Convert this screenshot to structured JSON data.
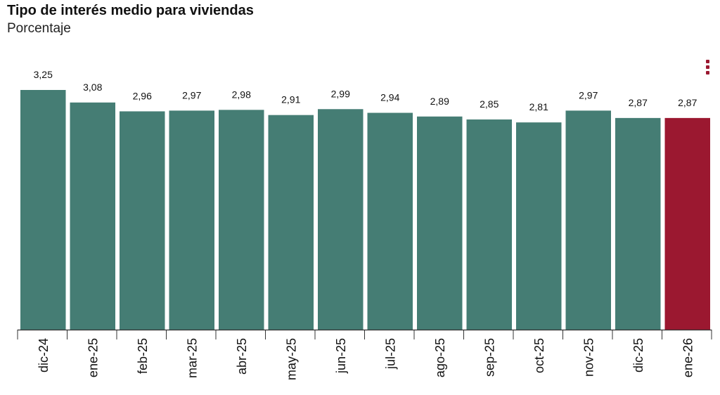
{
  "title": "Tipo de interés medio para viviendas",
  "subtitle": "Porcentaje",
  "colors": {
    "bar": "#457d74",
    "highlight": "#9b1830",
    "menu": "#9b1830"
  },
  "menu_icon": "kebab-menu-icon",
  "chart_data": {
    "type": "bar",
    "title": "Tipo de interés medio para viviendas",
    "subtitle": "Porcentaje",
    "categories": [
      "dic-24",
      "ene-25",
      "feb-25",
      "mar-25",
      "abr-25",
      "may-25",
      "jun-25",
      "jul-25",
      "ago-25",
      "sep-25",
      "oct-25",
      "nov-25",
      "dic-25",
      "ene-26"
    ],
    "values": [
      3.25,
      3.08,
      2.96,
      2.97,
      2.98,
      2.91,
      2.99,
      2.94,
      2.89,
      2.85,
      2.81,
      2.97,
      2.87,
      2.87
    ],
    "labels": [
      "3,25",
      "3,08",
      "2,96",
      "2,97",
      "2,98",
      "2,91",
      "2,99",
      "2,94",
      "2,89",
      "2,85",
      "2,81",
      "2,97",
      "2,87",
      "2,87"
    ],
    "highlight_index": 13,
    "ylim": [
      0,
      3.25
    ],
    "grid": false,
    "legend": "none"
  }
}
